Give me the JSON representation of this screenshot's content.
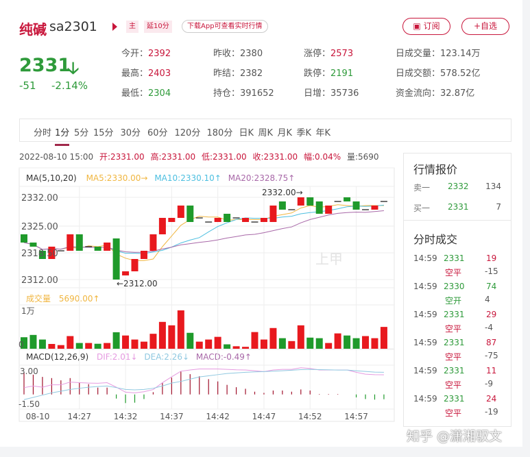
{
  "header": {
    "name": "纯碱",
    "code": "sa2301",
    "tag_main": "主",
    "tag_delay": "延10分",
    "download": "下载App可查看实时行情",
    "subscribe": "订阅",
    "subscribe_icon": "subscribe-icon",
    "add_watch": "+自选"
  },
  "quote": {
    "price": "2331",
    "direction": "down",
    "change": "-51",
    "change_pct": "-2.14%",
    "stats": [
      [
        {
          "k": "今开：",
          "v": "2392",
          "c": "red"
        },
        {
          "k": "最高：",
          "v": "2403",
          "c": "red"
        },
        {
          "k": "最低：",
          "v": "2304",
          "c": "green"
        }
      ],
      [
        {
          "k": "昨收：",
          "v": "2380",
          "c": ""
        },
        {
          "k": "昨结：",
          "v": "2382",
          "c": ""
        },
        {
          "k": "持仓：",
          "v": "391652",
          "c": ""
        }
      ],
      [
        {
          "k": "涨停：",
          "v": "2573",
          "c": "red"
        },
        {
          "k": "跌停：",
          "v": "2191",
          "c": "green"
        },
        {
          "k": "日增：",
          "v": "35736",
          "c": ""
        }
      ],
      [
        {
          "k": "日成交量：",
          "v": "123.14万",
          "c": ""
        },
        {
          "k": "日成交额：",
          "v": "578.52亿",
          "c": ""
        },
        {
          "k": "资金流向：",
          "v": "32.87亿",
          "c": ""
        }
      ]
    ]
  },
  "tabs": [
    "分时",
    "1分",
    "5分",
    "15分",
    "30分",
    "60分",
    "120分",
    "180分",
    "日K",
    "周K",
    "月K",
    "季K",
    "年K"
  ],
  "active_tab": "1分",
  "info_bar": {
    "datetime": "2022-08-10  15:00",
    "open": "开:2331.00",
    "high": "高:2331.00",
    "low": "低:2331.00",
    "close": "收:2331.00",
    "amp": "幅:0.04%",
    "vol": "量:5690"
  },
  "legend": {
    "ma": "MA(5,10,20)",
    "ma5": "MA5:2330.00→",
    "ma10": "MA10:2330.10↑",
    "ma20": "MA20:2328.75↑",
    "vol": "成交量",
    "vol_val": "5690.00↑",
    "macd": "MACD(12,26,9)",
    "dif": "DIF:2.01↓",
    "dea": "DEA:2.26↓",
    "macd_val": "MACD:-0.49↑"
  },
  "colors": {
    "up": "#e8191e",
    "down": "#1f9a2b",
    "ma5": "#f0b640",
    "ma10": "#4dbfe0",
    "ma20": "#a868a8",
    "dif": "#e59ae0",
    "dea": "#8fc8e0",
    "accent": "#c8163b"
  },
  "chart_data": {
    "type": "candlestick",
    "price_ticks": [
      "2332.00",
      "2325.00",
      "2318.50",
      "2312.00"
    ],
    "ylim": [
      2312,
      2332
    ],
    "max_label": "2332.00→",
    "min_label": "←2312.00",
    "x_ticks": [
      "08-10",
      "14:27",
      "14:32",
      "14:37",
      "14:42",
      "14:47",
      "14:52",
      "14:57"
    ],
    "candles": [
      [
        2323,
        2321
      ],
      [
        2321,
        2320
      ],
      [
        2319,
        2317
      ],
      [
        2317,
        2320
      ],
      [
        2319,
        2319
      ],
      [
        2319,
        2323
      ],
      [
        2323,
        2319
      ],
      [
        2320,
        2320
      ],
      [
        2320,
        2319
      ],
      [
        2319,
        2321
      ],
      [
        2322,
        2312
      ],
      [
        2313,
        2314
      ],
      [
        2314,
        2317
      ],
      [
        2317,
        2319
      ],
      [
        2319,
        2323
      ],
      [
        2323,
        2327
      ],
      [
        2326,
        2327
      ],
      [
        2327,
        2330
      ],
      [
        2330,
        2326
      ],
      [
        2327,
        2327
      ],
      [
        2326,
        2326
      ],
      [
        2326,
        2327
      ],
      [
        2328,
        2326
      ],
      [
        2327,
        2327
      ],
      [
        2326,
        2327
      ],
      [
        2326,
        2326
      ],
      [
        2326,
        2327
      ],
      [
        2326,
        2330
      ],
      [
        2331,
        2329
      ],
      [
        2329,
        2329
      ],
      [
        2330,
        2332
      ],
      [
        2332,
        2330
      ],
      [
        2331,
        2328
      ],
      [
        2328,
        2330
      ],
      [
        2331,
        2331
      ],
      [
        2332,
        2331
      ],
      [
        2331,
        2329
      ],
      [
        2329,
        2329
      ],
      [
        2329,
        2330
      ],
      [
        2331,
        2331
      ]
    ],
    "vol_ticks": [
      "1万",
      "0"
    ],
    "volume": [
      3000,
      3600,
      2400,
      1250,
      950,
      3300,
      1500,
      1500,
      1300,
      1500,
      4300,
      3450,
      2400,
      1850,
      3900,
      7000,
      6100,
      10000,
      4150,
      1850,
      2400,
      3100,
      1150,
      650,
      500,
      4350,
      2400,
      5400,
      2750,
      2000,
      6100,
      2900,
      2750,
      1500,
      4000,
      3450,
      2750,
      3300,
      2750,
      5690
    ],
    "macd_ticks": [
      "3.00",
      "-1.50"
    ],
    "macd": [
      2.26,
      2.02,
      1.79,
      1.67,
      1.44,
      1.67,
      1.21,
      1.05,
      0.7,
      0.7,
      -0.42,
      -0.88,
      -0.84,
      -0.47,
      0.23,
      1.21,
      1.72,
      2.33,
      2.07,
      1.86,
      1.56,
      1.33,
      0.98,
      0.74,
      0.58,
      0.28,
      0.16,
      0.4,
      0.4,
      0.28,
      0.51,
      0.4,
      0.05,
      0.05,
      0.05,
      0,
      -0.3,
      -0.47,
      -0.53,
      -0.49
    ],
    "dif": [
      0.7,
      0.86,
      0.74,
      0.98,
      0.98,
      1.26,
      1.2,
      1.16,
      1.14,
      1.2,
      0.74,
      0.23,
      0.16,
      0.28,
      0.5,
      1.2,
      1.8,
      2.37,
      2.5,
      2.6,
      2.6,
      2.6,
      2.56,
      2.51,
      2.5,
      2.42,
      2.33,
      2.5,
      2.56,
      2.56,
      2.72,
      2.65,
      2.5,
      2.5,
      2.5,
      2.5,
      2.26,
      2.07,
      2.02,
      2.01
    ],
    "dea": [
      -0.53,
      -0.3,
      -0.07,
      0.16,
      0.33,
      0.51,
      0.63,
      0.74,
      0.81,
      0.86,
      0.7,
      0.51,
      0.47,
      0.51,
      0.63,
      0.86,
      1.16,
      1.33,
      1.56,
      1.79,
      1.9,
      2.02,
      2.14,
      2.2,
      2.26,
      2.3,
      2.33,
      2.37,
      2.42,
      2.47,
      2.53,
      2.56,
      2.53,
      2.51,
      2.49,
      2.49,
      2.42,
      2.35,
      2.28,
      2.26
    ]
  },
  "side": {
    "quote_title": "行情报价",
    "book": [
      {
        "k": "卖一",
        "p": "2332",
        "q": "134"
      },
      {
        "k": "买一",
        "p": "2331",
        "q": "7"
      }
    ],
    "trades_title": "分时成交",
    "trades": [
      {
        "t": "14:59",
        "p": "2331",
        "v": "19",
        "vc": "red",
        "type": "空平",
        "tc": "red",
        "d": "-15"
      },
      {
        "t": "14:59",
        "p": "2330",
        "v": "74",
        "vc": "green",
        "type": "空开",
        "tc": "green",
        "d": "4"
      },
      {
        "t": "14:59",
        "p": "2331",
        "v": "29",
        "vc": "red",
        "type": "空平",
        "tc": "red",
        "d": "-4"
      },
      {
        "t": "14:59",
        "p": "2331",
        "v": "87",
        "vc": "red",
        "type": "空平",
        "tc": "red",
        "d": "-75"
      },
      {
        "t": "14:59",
        "p": "2331",
        "v": "11",
        "vc": "red",
        "type": "空平",
        "tc": "red",
        "d": "-9"
      },
      {
        "t": "14:59",
        "p": "2331",
        "v": "24",
        "vc": "red",
        "type": "空平",
        "tc": "red",
        "d": "-19"
      }
    ]
  },
  "watermark": "知乎 @潇湘驭文",
  "chart_watermark": "上甲"
}
